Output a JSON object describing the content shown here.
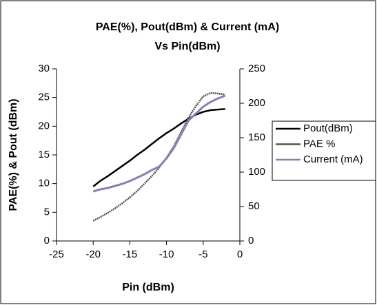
{
  "chart_data": {
    "type": "line",
    "title": [
      "PAE(%), Pout(dBm) & Current (mA)",
      "Vs Pin(dBm)"
    ],
    "x_label": "Pin (dBm)",
    "y_label": "PAE(%) & Pout (dBm)",
    "x": [
      -20,
      -19,
      -18,
      -17,
      -16,
      -15,
      -14,
      -13,
      -12,
      -11,
      -10,
      -9,
      -8,
      -7,
      -6,
      -5,
      -4,
      -3,
      -2
    ],
    "series": [
      {
        "name": "Pout(dBm)",
        "color": "#000000",
        "values": [
          9.5,
          10.5,
          11.3,
          12.2,
          13.1,
          14,
          15,
          15.9,
          16.9,
          17.9,
          18.8,
          19.6,
          20.5,
          21.3,
          22,
          22.5,
          22.8,
          22.9,
          23
        ]
      },
      {
        "name": "PAE %",
        "color": "#505050",
        "values": [
          3.5,
          4.2,
          4.9,
          5.7,
          6.6,
          7.6,
          8.7,
          10,
          11.3,
          12.8,
          14.5,
          16.5,
          19,
          21.5,
          23.5,
          25.2,
          25.8,
          25.7,
          25.5
        ]
      },
      {
        "name": "Current (mA)",
        "color": "#8080c0",
        "axis": "y2",
        "values": [
          72,
          75,
          77,
          80,
          83,
          87,
          92,
          97,
          103,
          108,
          120,
          135,
          155,
          175,
          185,
          195,
          202,
          207,
          211
        ]
      }
    ],
    "xlim": [
      -25,
      0
    ],
    "xticks": [
      -25,
      -20,
      -15,
      -10,
      -5,
      0
    ],
    "ylim": [
      0,
      30
    ],
    "yticks": [
      0,
      5,
      10,
      15,
      20,
      25,
      30
    ],
    "y2lim": [
      0,
      250
    ],
    "y2ticks": [
      0,
      50,
      100,
      150,
      200,
      250
    ],
    "legend": "right"
  }
}
